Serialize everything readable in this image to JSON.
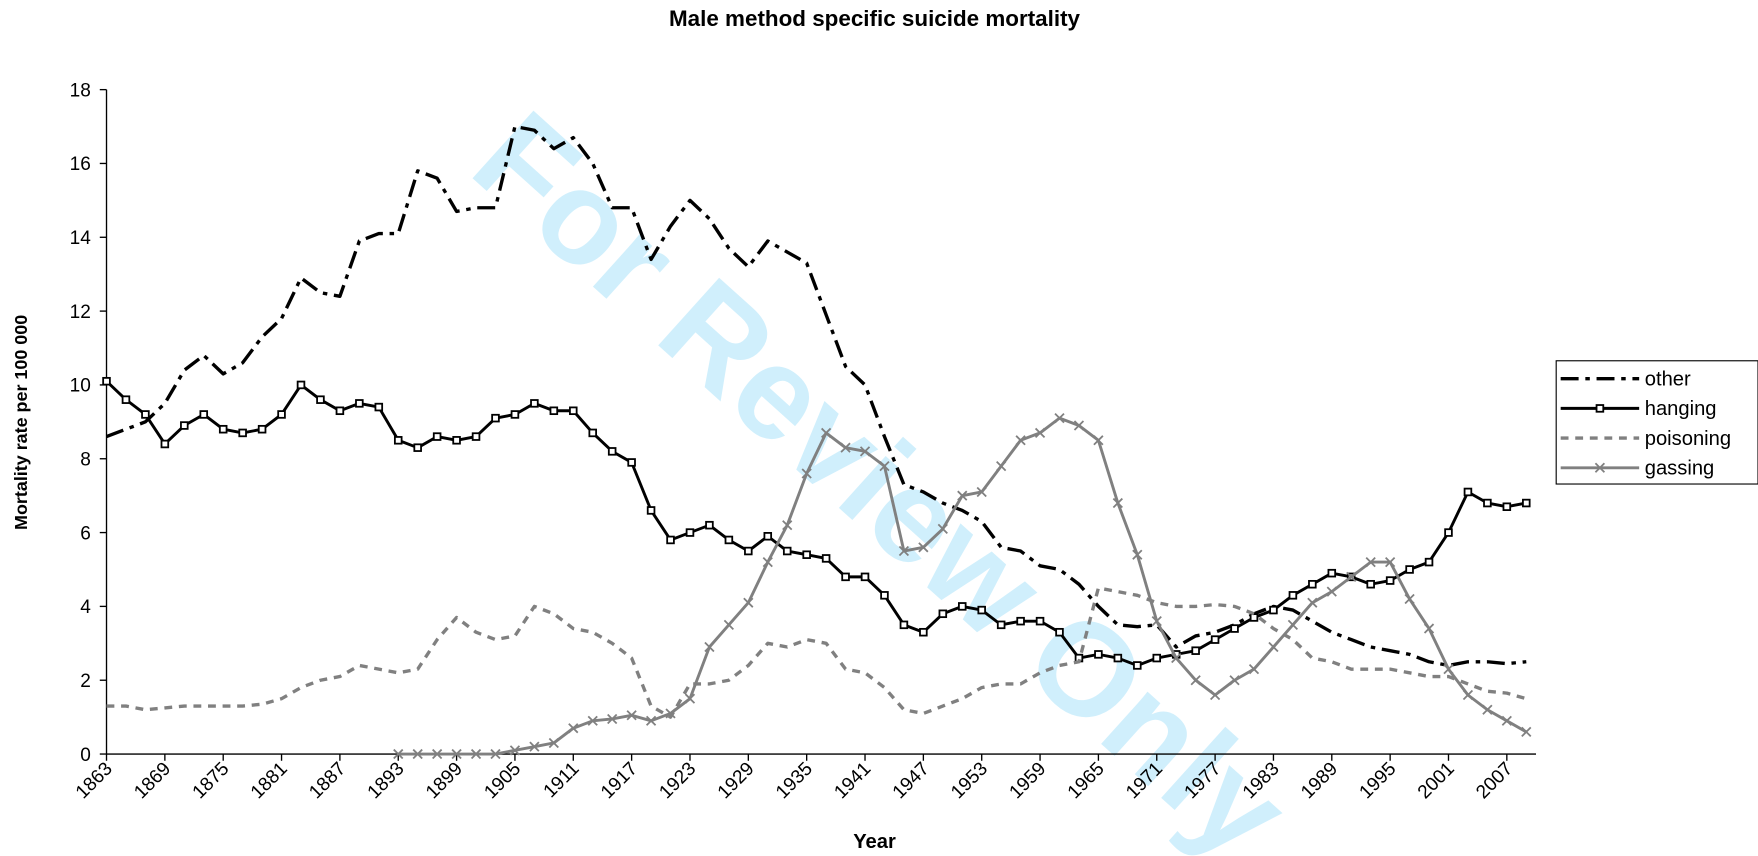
{
  "chart_data": {
    "type": "line",
    "title": "Male method specific suicide mortality",
    "x_label": "Year",
    "y_label": "Mortality rate per 100 000",
    "watermark": "For Review Only",
    "x": [
      1863,
      1865,
      1867,
      1869,
      1871,
      1873,
      1875,
      1877,
      1879,
      1881,
      1883,
      1885,
      1887,
      1889,
      1891,
      1893,
      1895,
      1897,
      1899,
      1901,
      1903,
      1905,
      1907,
      1909,
      1911,
      1913,
      1915,
      1917,
      1919,
      1921,
      1923,
      1925,
      1927,
      1929,
      1931,
      1933,
      1935,
      1937,
      1939,
      1941,
      1943,
      1945,
      1947,
      1949,
      1951,
      1953,
      1955,
      1957,
      1959,
      1961,
      1963,
      1965,
      1967,
      1969,
      1971,
      1973,
      1975,
      1977,
      1979,
      1981,
      1983,
      1985,
      1987,
      1989,
      1991,
      1993,
      1995,
      1997,
      1999,
      2001,
      2003,
      2005,
      2007,
      2009
    ],
    "xlim": [
      1863,
      2010
    ],
    "xticks": [
      1863,
      1869,
      1875,
      1881,
      1887,
      1893,
      1899,
      1905,
      1911,
      1917,
      1923,
      1929,
      1935,
      1941,
      1947,
      1953,
      1959,
      1965,
      1971,
      1977,
      1983,
      1989,
      1995,
      2001,
      2007
    ],
    "ylim": [
      0,
      18
    ],
    "yticks": [
      0,
      2,
      4,
      6,
      8,
      10,
      12,
      14,
      16,
      18
    ],
    "legend": "right",
    "series": [
      {
        "name": "other",
        "color": "#000000",
        "line_style": "dashdot",
        "marker": "none",
        "values": [
          8.6,
          8.8,
          9.0,
          9.5,
          10.4,
          10.8,
          10.3,
          10.6,
          11.3,
          11.8,
          12.9,
          12.5,
          12.4,
          13.9,
          14.1,
          14.1,
          15.8,
          15.6,
          14.7,
          14.8,
          14.8,
          17.0,
          16.9,
          16.4,
          16.7,
          16.0,
          14.8,
          14.8,
          13.4,
          14.3,
          15.0,
          14.5,
          13.7,
          13.2,
          13.9,
          13.6,
          13.3,
          11.9,
          10.5,
          10.0,
          8.6,
          7.3,
          7.1,
          6.8,
          6.6,
          6.3,
          5.6,
          5.5,
          5.1,
          5.0,
          4.6,
          4.0,
          3.5,
          3.45,
          3.5,
          2.9,
          3.2,
          3.3,
          3.5,
          3.8,
          4.0,
          3.9,
          3.6,
          3.3,
          3.1,
          2.9,
          2.8,
          2.7,
          2.5,
          2.4,
          2.5,
          2.5,
          2.45,
          2.5
        ]
      },
      {
        "name": "hanging",
        "color": "#000000",
        "line_style": "solid",
        "marker": "square",
        "values": [
          10.1,
          9.6,
          9.2,
          8.4,
          8.9,
          9.2,
          8.8,
          8.7,
          8.8,
          9.2,
          10.0,
          9.6,
          9.3,
          9.5,
          9.4,
          8.5,
          8.3,
          8.6,
          8.5,
          8.6,
          9.1,
          9.2,
          9.5,
          9.3,
          9.3,
          8.7,
          8.2,
          7.9,
          6.6,
          5.8,
          6.0,
          6.2,
          5.8,
          5.5,
          5.9,
          5.5,
          5.4,
          5.3,
          4.8,
          4.8,
          4.3,
          3.5,
          3.3,
          3.8,
          4.0,
          3.9,
          3.5,
          3.6,
          3.6,
          3.3,
          2.6,
          2.7,
          2.6,
          2.4,
          2.6,
          2.7,
          2.8,
          3.1,
          3.4,
          3.7,
          3.9,
          4.3,
          4.6,
          4.9,
          4.8,
          4.6,
          4.7,
          5.0,
          5.2,
          6.0,
          7.1,
          6.8,
          6.7,
          6.8
        ]
      },
      {
        "name": "poisoning",
        "color": "#808080",
        "line_style": "dashed",
        "marker": "none",
        "values": [
          1.3,
          1.3,
          1.2,
          1.25,
          1.3,
          1.3,
          1.3,
          1.3,
          1.35,
          1.5,
          1.8,
          2.0,
          2.1,
          2.4,
          2.3,
          2.2,
          2.3,
          3.1,
          3.7,
          3.3,
          3.1,
          3.2,
          4.0,
          3.8,
          3.4,
          3.3,
          3.0,
          2.6,
          1.3,
          1.0,
          1.9,
          1.9,
          2.0,
          2.4,
          3.0,
          2.9,
          3.1,
          3.0,
          2.3,
          2.2,
          1.8,
          1.2,
          1.1,
          1.3,
          1.5,
          1.8,
          1.9,
          1.9,
          2.2,
          2.4,
          2.5,
          4.5,
          4.4,
          4.3,
          4.1,
          4.0,
          4.0,
          4.05,
          4.0,
          3.8,
          3.4,
          3.1,
          2.6,
          2.5,
          2.3,
          2.3,
          2.3,
          2.2,
          2.1,
          2.1,
          1.9,
          1.7,
          1.65,
          1.5
        ]
      },
      {
        "name": "gassing",
        "color": "#808080",
        "line_style": "solid",
        "marker": "x",
        "values": [
          null,
          null,
          null,
          null,
          null,
          null,
          null,
          null,
          null,
          null,
          null,
          null,
          null,
          null,
          null,
          0,
          0,
          0,
          0,
          0,
          0,
          0.1,
          0.2,
          0.3,
          0.7,
          0.9,
          0.95,
          1.05,
          0.9,
          1.1,
          1.5,
          2.9,
          3.5,
          4.1,
          5.2,
          6.2,
          7.6,
          8.7,
          8.3,
          8.2,
          7.8,
          5.5,
          5.6,
          6.1,
          7.0,
          7.1,
          7.8,
          8.5,
          8.7,
          9.1,
          8.9,
          8.5,
          6.8,
          5.4,
          3.6,
          2.6,
          2.0,
          1.6,
          2.0,
          2.3,
          2.9,
          3.5,
          4.1,
          4.4,
          4.8,
          5.2,
          5.2,
          4.2,
          3.4,
          2.3,
          1.6,
          1.2,
          0.9,
          0.6
        ]
      }
    ]
  }
}
